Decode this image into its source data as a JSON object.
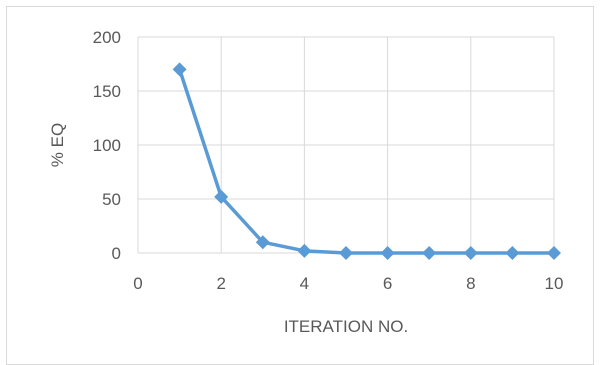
{
  "chart_data": {
    "type": "line",
    "title": "",
    "xlabel": "ITERATION NO.",
    "ylabel": "% EQ",
    "xlim": [
      0,
      10
    ],
    "ylim": [
      0,
      200
    ],
    "x_ticks": [
      "0",
      "2",
      "4",
      "6",
      "8",
      "10"
    ],
    "y_ticks": [
      "0",
      "50",
      "100",
      "150",
      "200"
    ],
    "grid": true,
    "legend": "none",
    "marker": "diamond",
    "series": [
      {
        "x": [
          1,
          2,
          3,
          4,
          5,
          6,
          7,
          8,
          9,
          10
        ],
        "values": [
          170,
          52,
          10,
          2,
          0,
          0,
          0,
          0,
          0,
          0
        ]
      }
    ],
    "colors": {
      "series": "#5b9bd5",
      "grid": "#d9d9d9",
      "text": "#595959"
    }
  }
}
